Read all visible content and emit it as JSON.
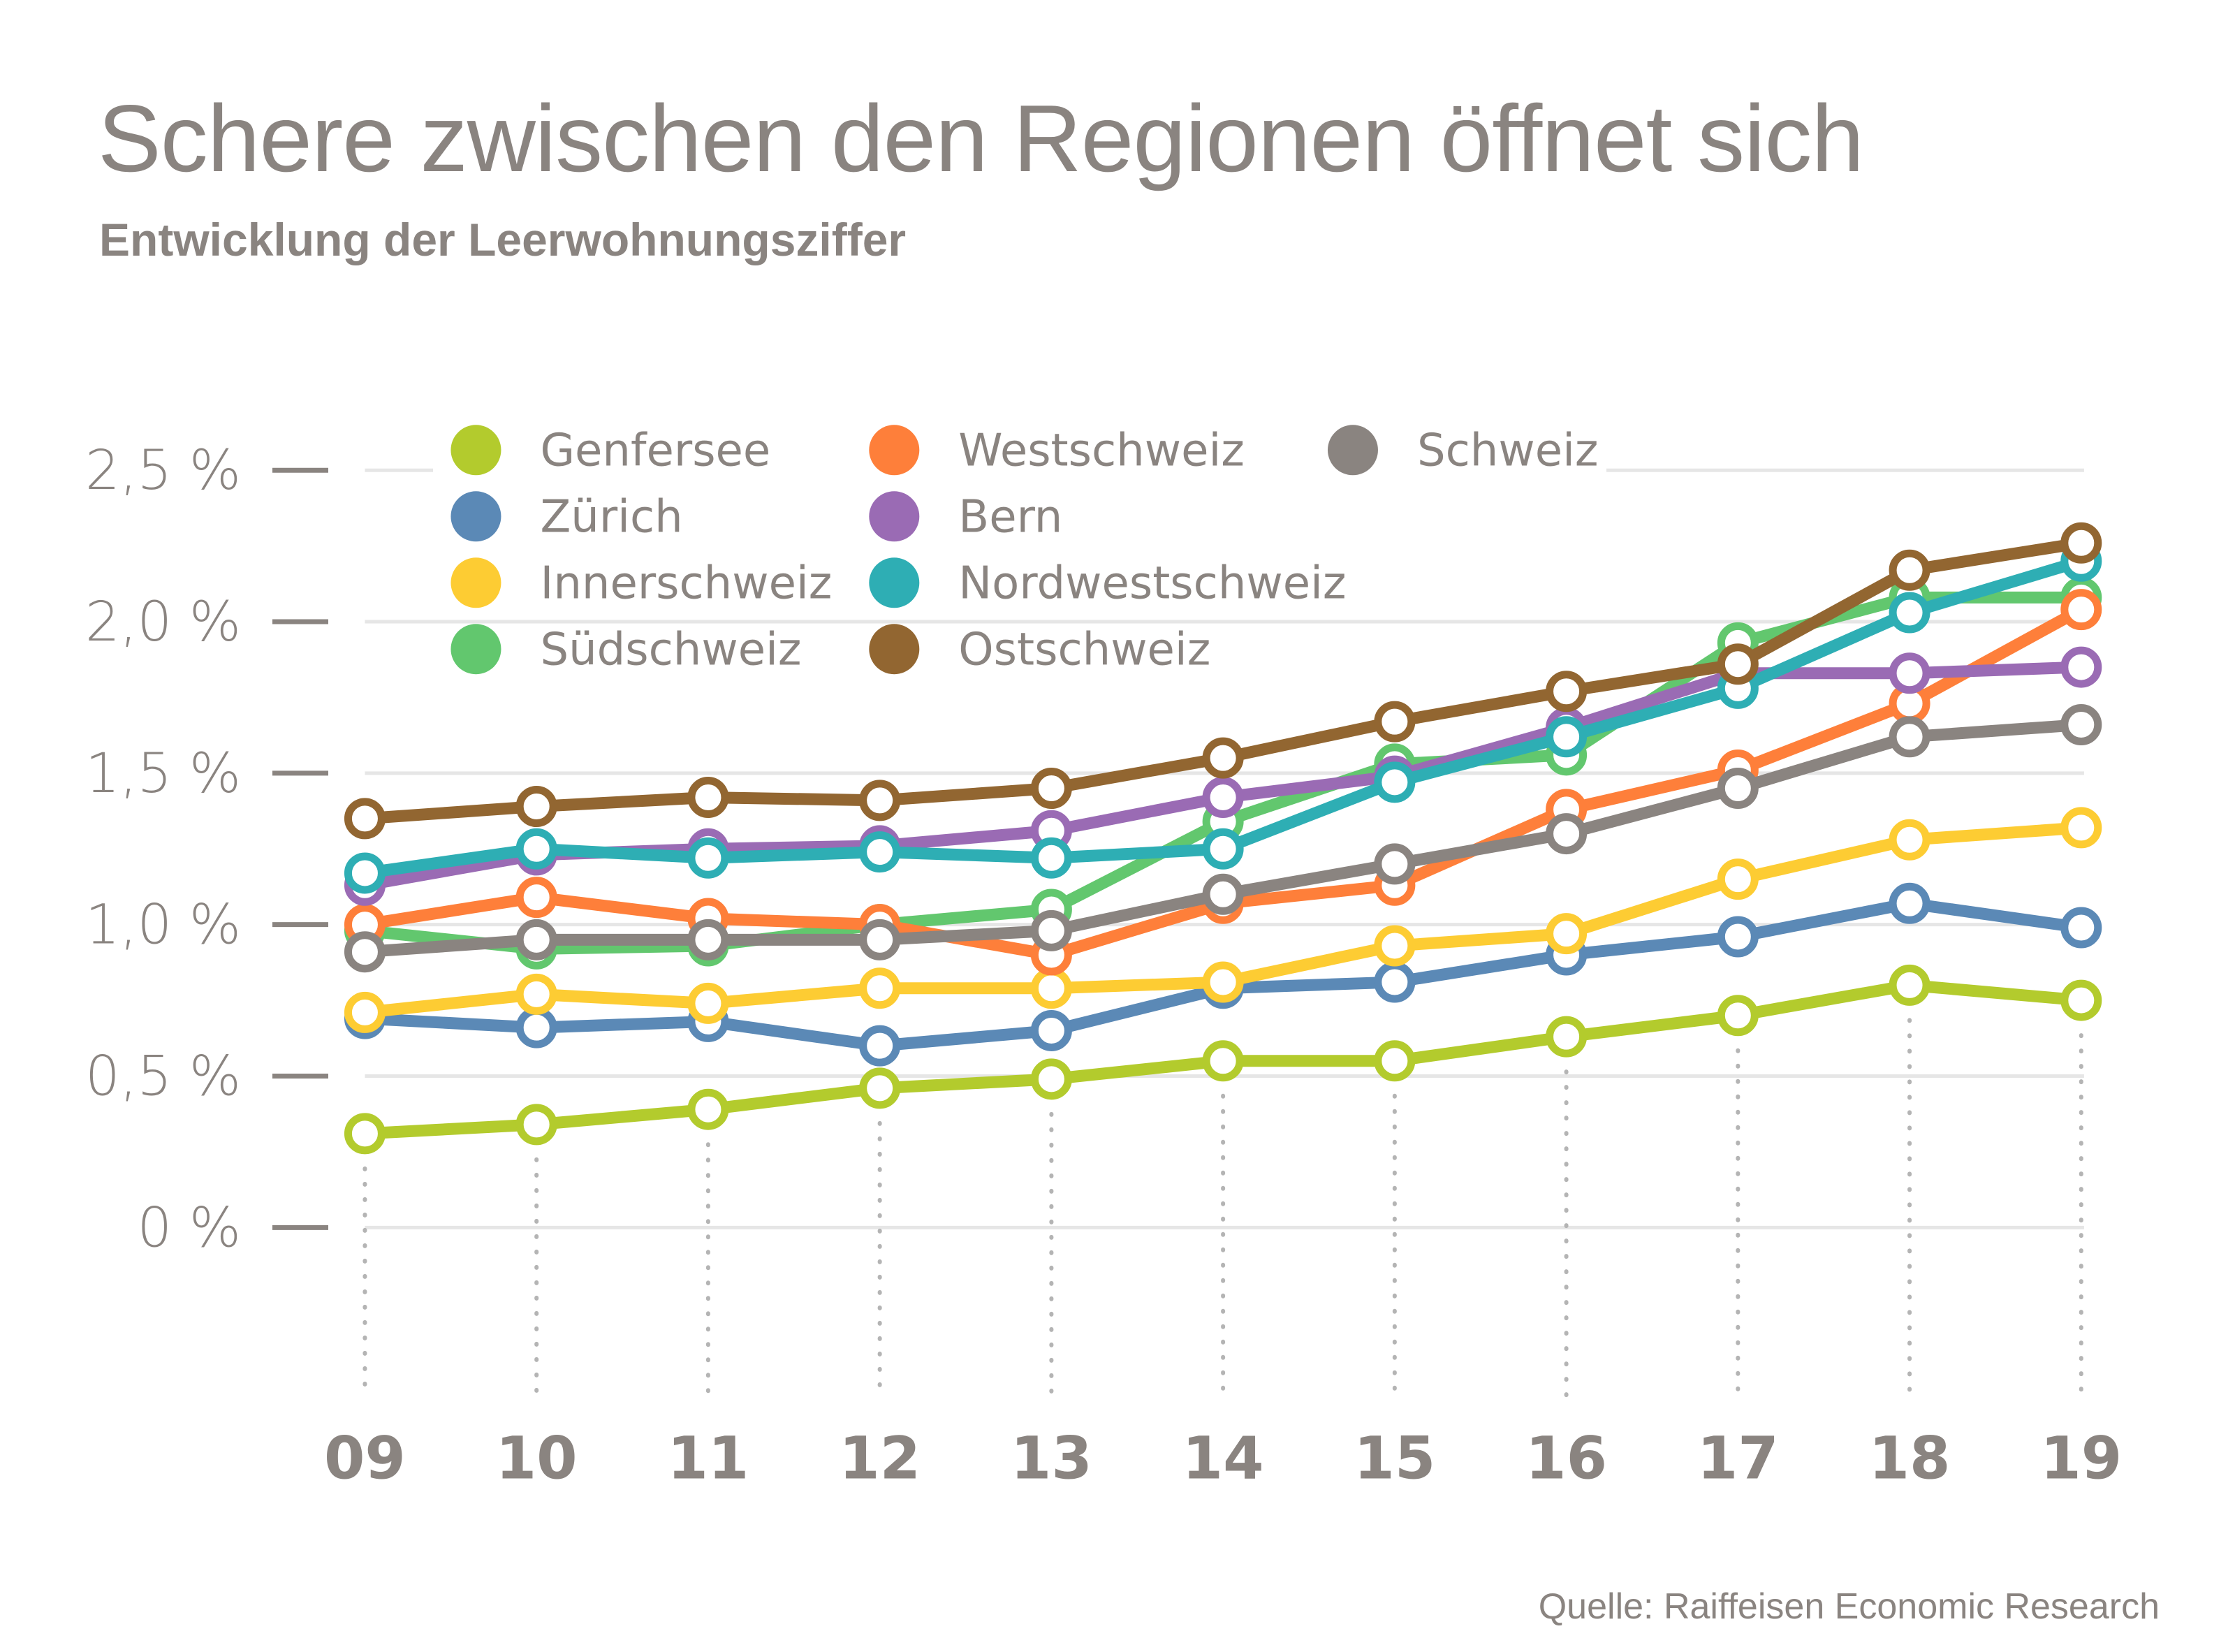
{
  "title": "Schere zwischen den Regionen öffnet sich",
  "subtitle": "Entwicklung der Leerwohnungsziffer",
  "source": "Quelle: Raiffeisen Economic Research",
  "chart_data": {
    "type": "line",
    "title": "Schere zwischen den Regionen öffnet sich",
    "subtitle": "Entwicklung der Leerwohnungsziffer",
    "xlabel": "",
    "ylabel": "",
    "categories": [
      "09",
      "10",
      "11",
      "12",
      "13",
      "14",
      "15",
      "16",
      "17",
      "18",
      "19"
    ],
    "ylim": [
      0,
      2.5
    ],
    "yticks": [
      0,
      0.5,
      1.0,
      1.5,
      2.0,
      2.5
    ],
    "ytick_labels": [
      "0 %",
      "0,5 %",
      "1,0 %",
      "1,5 %",
      "2,0 %",
      "2,5 %"
    ],
    "grid": true,
    "legend_position": "top-left",
    "series": [
      {
        "name": "Genfersee",
        "color": "#b3cb2d",
        "values": [
          0.31,
          0.34,
          0.39,
          0.46,
          0.49,
          0.55,
          0.55,
          0.63,
          0.7,
          0.8,
          0.75
        ]
      },
      {
        "name": "Zürich",
        "color": "#5b89b6",
        "values": [
          0.69,
          0.66,
          0.68,
          0.6,
          0.65,
          0.79,
          0.81,
          0.9,
          0.96,
          1.07,
          0.99
        ]
      },
      {
        "name": "Innerschweiz",
        "color": "#fdcc33",
        "values": [
          0.71,
          0.77,
          0.74,
          0.79,
          0.79,
          0.81,
          0.93,
          0.97,
          1.15,
          1.28,
          1.32
        ]
      },
      {
        "name": "Südschweiz",
        "color": "#62c76e",
        "values": [
          0.98,
          0.92,
          0.93,
          1.0,
          1.05,
          1.34,
          1.53,
          1.56,
          1.93,
          2.08,
          2.08
        ]
      },
      {
        "name": "Westschweiz",
        "color": "#fe7f3a",
        "values": [
          1.0,
          1.09,
          1.02,
          1.0,
          0.9,
          1.07,
          1.13,
          1.38,
          1.51,
          1.73,
          2.04
        ]
      },
      {
        "name": "Bern",
        "color": "#9a6bb4",
        "values": [
          1.13,
          1.23,
          1.25,
          1.26,
          1.31,
          1.42,
          1.49,
          1.65,
          1.83,
          1.83,
          1.85
        ]
      },
      {
        "name": "Nordwestschweiz",
        "color": "#2eaeb4",
        "values": [
          1.17,
          1.25,
          1.22,
          1.24,
          1.22,
          1.25,
          1.47,
          1.62,
          1.78,
          2.03,
          2.2
        ]
      },
      {
        "name": "Ostschweiz",
        "color": "#926631",
        "values": [
          1.35,
          1.39,
          1.42,
          1.41,
          1.45,
          1.55,
          1.67,
          1.77,
          1.86,
          2.17,
          2.26
        ]
      },
      {
        "name": "Schweiz",
        "color": "#8a8480",
        "values": [
          0.91,
          0.95,
          0.95,
          0.95,
          0.98,
          1.1,
          1.2,
          1.3,
          1.45,
          1.62,
          1.66
        ]
      }
    ],
    "legend_order": [
      "Genfersee",
      "Zürich",
      "Innerschweiz",
      "Südschweiz",
      "Westschweiz",
      "Bern",
      "Nordwestschweiz",
      "Ostschweiz",
      "Schweiz"
    ],
    "legend_columns": 3
  }
}
